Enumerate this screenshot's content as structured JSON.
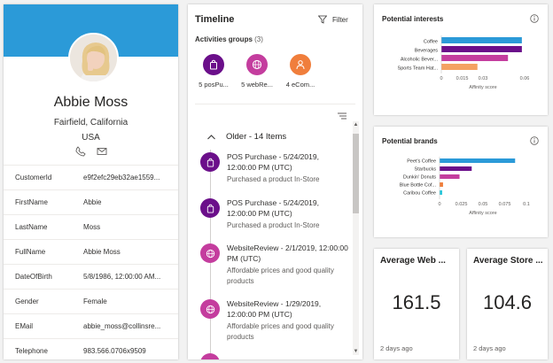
{
  "profile": {
    "name": "Abbie Moss",
    "location": "Fairfield, California",
    "country": "USA",
    "fields": [
      {
        "key": "CustomerId",
        "value": "e9f2efc29eb32ae1559..."
      },
      {
        "key": "FirstName",
        "value": "Abbie"
      },
      {
        "key": "LastName",
        "value": "Moss"
      },
      {
        "key": "FullName",
        "value": "Abbie Moss"
      },
      {
        "key": "DateOfBirth",
        "value": "5/8/1986, 12:00:00 AM..."
      },
      {
        "key": "Gender",
        "value": "Female"
      },
      {
        "key": "EMail",
        "value": "abbie_moss@collinsre..."
      },
      {
        "key": "Telephone",
        "value": "983.566.0706x9509"
      }
    ]
  },
  "timeline": {
    "title": "Timeline",
    "filter_label": "Filter",
    "groups_label": "Activities groups",
    "groups_count": "(3)",
    "groups": [
      {
        "label": "5 posPu...",
        "color": "#6b0f8a",
        "icon": "bag-icon"
      },
      {
        "label": "5 webRe...",
        "color": "#c43d9e",
        "icon": "globe-icon"
      },
      {
        "label": "4 eCom...",
        "color": "#f07e3c",
        "icon": "people-icon"
      }
    ],
    "older_label": "Older - 14 Items",
    "items": [
      {
        "title": "POS Purchase - 5/24/2019, 12:00:00 PM (UTC)",
        "desc": "Purchased a product In-Store",
        "color": "#6b0f8a",
        "icon": "bag-icon"
      },
      {
        "title": "POS Purchase - 5/24/2019, 12:00:00 PM (UTC)",
        "desc": "Purchased a product In-Store",
        "color": "#6b0f8a",
        "icon": "bag-icon"
      },
      {
        "title": "WebsiteReview - 2/1/2019, 12:00:00 PM (UTC)",
        "desc": "Affordable prices and good quality products",
        "color": "#c43d9e",
        "icon": "globe-icon"
      },
      {
        "title": "WebsiteReview - 1/29/2019, 12:00:00 PM (UTC)",
        "desc": "Affordable prices and good quality products",
        "color": "#c43d9e",
        "icon": "globe-icon"
      }
    ]
  },
  "interests": {
    "title": "Potential interests",
    "chart_data": {
      "type": "bar",
      "orientation": "horizontal",
      "categories": [
        "Coffee",
        "Beverages",
        "Alcoholic Bever...",
        "Sports Team Hat..."
      ],
      "values": [
        0.058,
        0.058,
        0.048,
        0.026
      ],
      "colors": [
        "#2b9ad8",
        "#6b0f8a",
        "#c43d9e",
        "#f4a261"
      ],
      "xlabel": "Affinity score",
      "xlim": [
        0,
        0.06
      ],
      "ticks": [
        0,
        0.015,
        0.03,
        0.06
      ],
      "tick_labels": [
        "0",
        "0.015",
        "0.03",
        "0.06"
      ]
    }
  },
  "brands": {
    "title": "Potential brands",
    "chart_data": {
      "type": "bar",
      "orientation": "horizontal",
      "categories": [
        "Peet's Coffee",
        "Starbucks",
        "Dunkin' Donuts",
        "Blue Bottle Cof...",
        "Caribou Coffee"
      ],
      "values": [
        0.087,
        0.037,
        0.023,
        0.004,
        0.003
      ],
      "colors": [
        "#2b9ad8",
        "#6b0f8a",
        "#c43d9e",
        "#f07e3c",
        "#26c6da"
      ],
      "xlabel": "Affinity score",
      "xlim": [
        0,
        0.1
      ],
      "ticks": [
        0,
        0.025,
        0.05,
        0.075,
        0.1
      ],
      "tick_labels": [
        "0",
        "0.025",
        "0.05",
        "0.075",
        "0.1"
      ]
    }
  },
  "kpis": [
    {
      "title": "Average Web ...",
      "value": "161.5",
      "footer": "2 days ago"
    },
    {
      "title": "Average Store ...",
      "value": "104.6",
      "footer": "2 days ago"
    }
  ]
}
